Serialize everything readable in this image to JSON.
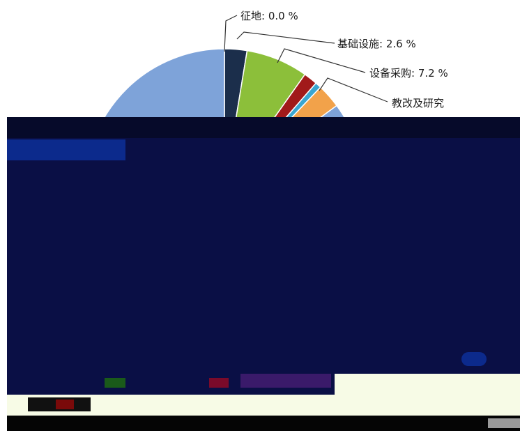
{
  "chart_data": {
    "type": "pie",
    "title": "",
    "unit": "%",
    "slices": [
      {
        "label": "征地",
        "value": 0.0,
        "display": "征地: 0.0 %",
        "color": "#4f6aa6"
      },
      {
        "label": "基础设施",
        "value": 2.6,
        "display": "基础设施: 2.6 %",
        "color": "#1b2e4b"
      },
      {
        "label": "设备采购",
        "value": 7.2,
        "display": "设备采购: 7.2 %",
        "color": "#8cbf3a"
      },
      {
        "label": "",
        "value": 1.6,
        "display": "",
        "color": "#a11a1a"
      },
      {
        "label": "",
        "value": 0.7,
        "display": "",
        "color": "#3aa6d0"
      },
      {
        "label": "教改及研究",
        "value": 2.8,
        "display": "教改及研究",
        "color": "#f2a24a"
      },
      {
        "label": "",
        "value": 85.1,
        "display": "",
        "color": "#7ea3d9"
      }
    ],
    "legend": "bottom"
  },
  "colors": {
    "dark_overlay": "#0a0f45",
    "deep_blue": "#0c2a8c",
    "band_black": "#050505",
    "band_white": "#f7fbe6"
  }
}
